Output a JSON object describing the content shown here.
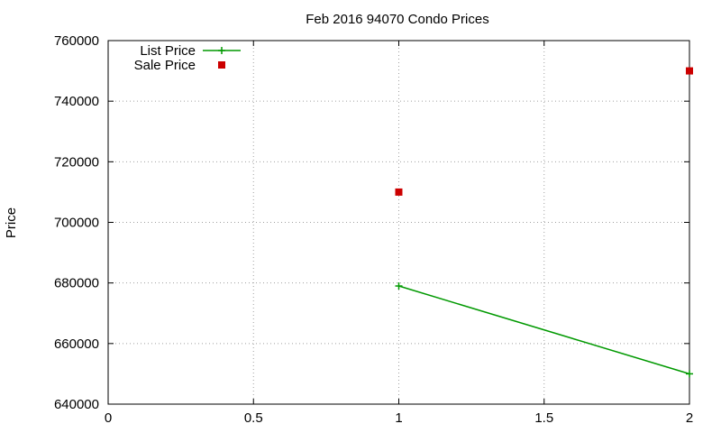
{
  "chart_data": {
    "type": "scatter",
    "title": "Feb 2016 94070 Condo Prices",
    "xlabel": "",
    "ylabel": "Price",
    "xlim": [
      0,
      2
    ],
    "ylim": [
      640000,
      760000
    ],
    "xticks": [
      0,
      0.5,
      1,
      1.5,
      2
    ],
    "xtick_labels": [
      "0",
      "0.5",
      "1",
      "1.5",
      "2"
    ],
    "yticks": [
      640000,
      660000,
      680000,
      700000,
      720000,
      740000,
      760000
    ],
    "ytick_labels": [
      "640000",
      "660000",
      "680000",
      "700000",
      "720000",
      "740000",
      "760000"
    ],
    "grid": true,
    "legend_position": "top-left",
    "series": [
      {
        "name": "List Price",
        "style": "linespoints",
        "marker": "plus",
        "color": "#009900",
        "x": [
          1,
          2
        ],
        "y": [
          679000,
          650000
        ]
      },
      {
        "name": "Sale Price",
        "style": "points",
        "marker": "square",
        "color": "#cc0000",
        "x": [
          1,
          2
        ],
        "y": [
          710000,
          750000
        ]
      }
    ]
  }
}
